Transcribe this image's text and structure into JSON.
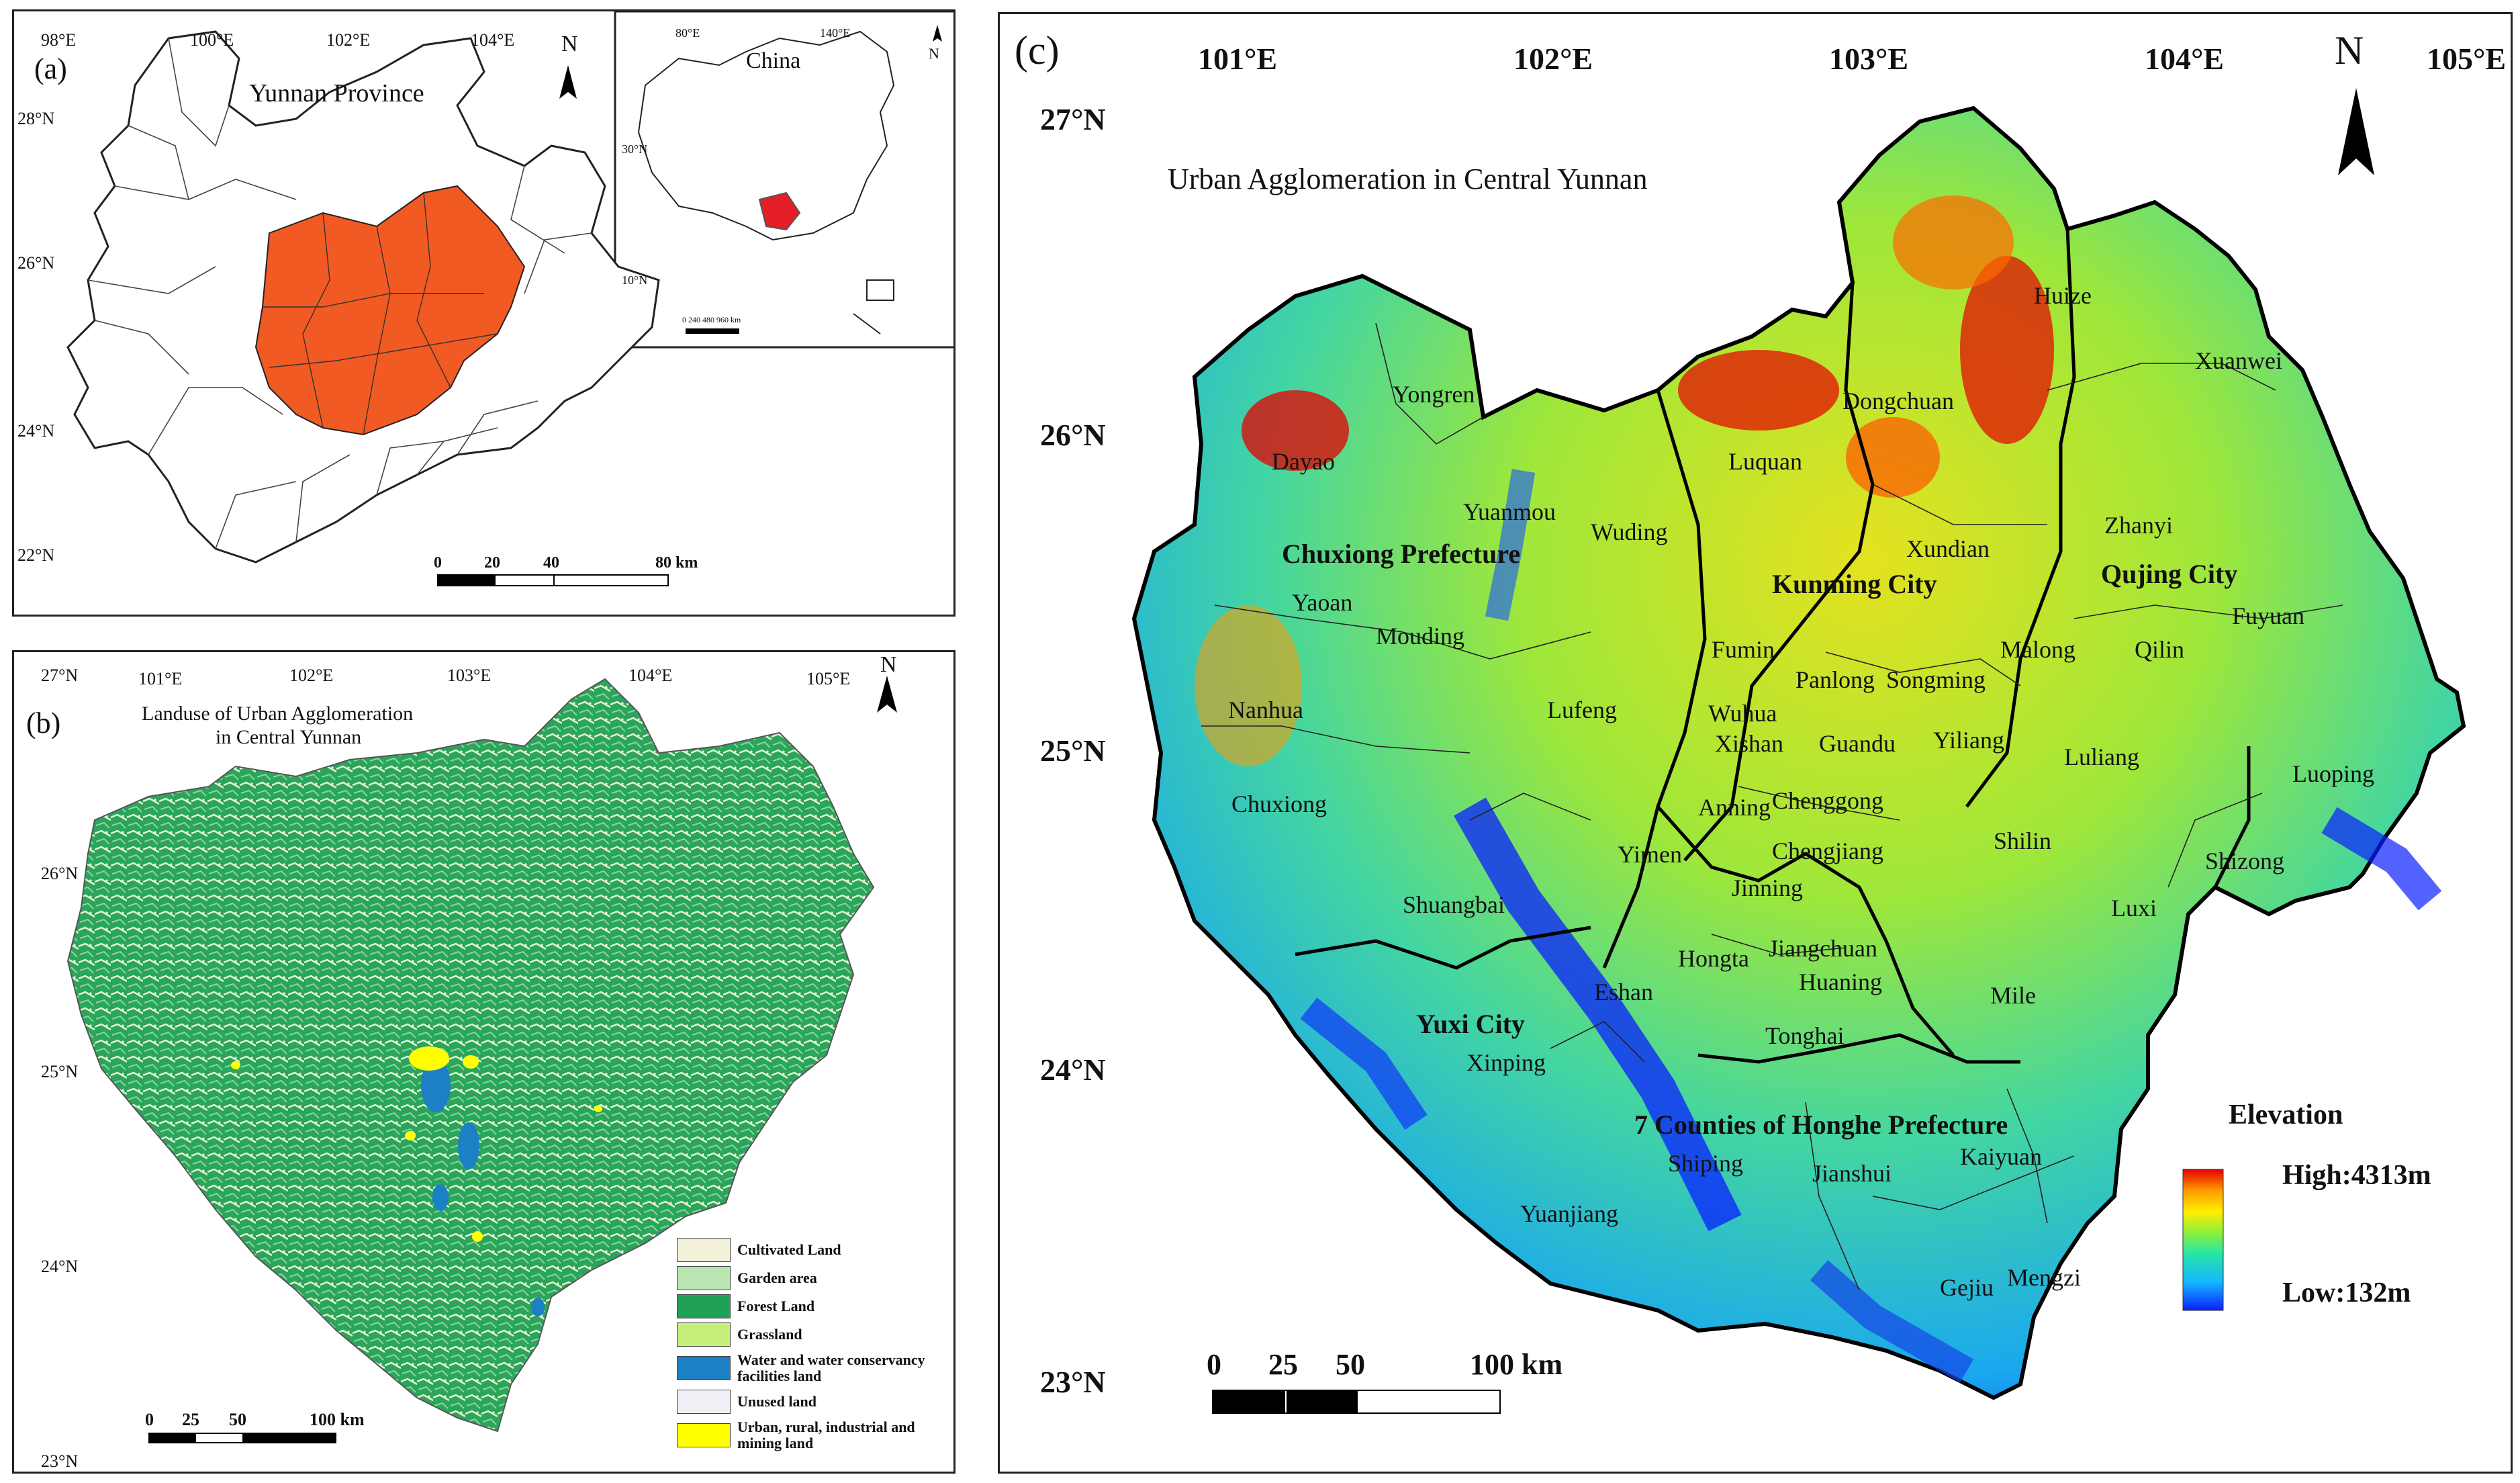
{
  "panel_a": {
    "tag": "(a)",
    "title": "Yunnan Province",
    "north": "N",
    "lon_ticks": [
      "98°E",
      "100°E",
      "102°E",
      "104°E"
    ],
    "lat_ticks": [
      "28°N",
      "26°N",
      "24°N",
      "22°N"
    ],
    "scale": {
      "labels": [
        "0",
        "20",
        "40",
        "80 km"
      ]
    },
    "inset": {
      "title": "China",
      "north": "N",
      "lon_ticks": [
        "80°E",
        "140°E"
      ],
      "lat_ticks": [
        "30°N",
        "10°N"
      ],
      "scale_text": "0  240 480        960 km"
    },
    "highlight_color": "#f15a22"
  },
  "panel_b": {
    "tag": "(b)",
    "title_line1": "Landuse of Urban Agglomeration",
    "title_line2": "in Central Yunnan",
    "north": "N",
    "lon_ticks": [
      "101°E",
      "102°E",
      "103°E",
      "104°E",
      "105°E"
    ],
    "lat_ticks": [
      "27°N",
      "26°N",
      "25°N",
      "24°N",
      "23°N"
    ],
    "scale": {
      "labels": [
        "0",
        "25",
        "50",
        "100 km"
      ]
    },
    "legend": [
      {
        "label": "Cultivated Land",
        "color": "#f2f0d6"
      },
      {
        "label": "Garden area",
        "color": "#b8e5b0"
      },
      {
        "label": "Forest Land",
        "color": "#1fa257"
      },
      {
        "label": "Grassland",
        "color": "#c5ef7a"
      },
      {
        "label": "Water and water conservancy facilities land",
        "color": "#1c80c4"
      },
      {
        "label": "Unused land",
        "color": "#eef0f5"
      },
      {
        "label": "Urban, rural, industrial and mining land",
        "color": "#ffff00"
      }
    ]
  },
  "panel_c": {
    "tag": "(c)",
    "title": "Urban Agglomeration in Central Yunnan",
    "north": "N",
    "lon_ticks": [
      "101°E",
      "102°E",
      "103°E",
      "104°E",
      "105°E"
    ],
    "lat_ticks": [
      "27°N",
      "26°N",
      "25°N",
      "24°N",
      "23°N"
    ],
    "scale": {
      "labels": [
        "0",
        "25",
        "50",
        "100 km"
      ]
    },
    "legend": {
      "title": "Elevation",
      "high": "High:4313m",
      "low": "Low:132m"
    },
    "prefectures": [
      "Chuxiong Prefecture",
      "Kunming City",
      "Qujing City",
      "Yuxi City",
      "7 Counties of Honghe Prefecture"
    ],
    "counties": [
      "Huize",
      "Xuanwei",
      "Dongchuan",
      "Yongren",
      "Dayao",
      "Luquan",
      "Zhanyi",
      "Yuanmou",
      "Wuding",
      "Xundian",
      "Yaoan",
      "Fuyuan",
      "Mouding",
      "Fumin",
      "Malong",
      "Qilin",
      "Panlong",
      "Songming",
      "Nanhua",
      "Lufeng",
      "Wuhua",
      "Xishan",
      "Guandu",
      "Yiliang",
      "Luliang",
      "Luoping",
      "Chuxiong",
      "Anning",
      "Chenggong",
      "Yimen",
      "Chengjiang",
      "Shilin",
      "Shizong",
      "Jinning",
      "Shuangbai",
      "Luxi",
      "Hongta",
      "Jiangchuan",
      "Huaning",
      "Eshan",
      "Mile",
      "Tonghai",
      "Xinping",
      "Shiping",
      "Jianshui",
      "Kaiyuan",
      "Yuanjiang",
      "Gejiu",
      "Mengzi"
    ]
  }
}
